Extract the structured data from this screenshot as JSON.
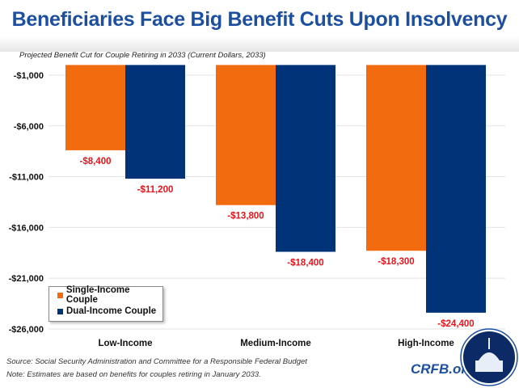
{
  "title": "Beneficiaries Face Big Benefit Cuts Upon Insolvency",
  "subtitle": "Projected Benefit Cut for Couple Retiring in 2033 (Current Dollars, 2033)",
  "chart_data": {
    "type": "bar",
    "categories": [
      "Low-Income",
      "Medium-Income",
      "High-Income"
    ],
    "series": [
      {
        "name": "Single-Income Couple",
        "color": "#f26b0f",
        "values": [
          -8400,
          -13800,
          -18300
        ],
        "labels": [
          "-$8,400",
          "-$13,800",
          "-$18,300"
        ]
      },
      {
        "name": "Dual-Income Couple",
        "color": "#003378",
        "values": [
          -11200,
          -18400,
          -24400
        ],
        "labels": [
          "-$11,200",
          "-$18,400",
          "-$24,400"
        ]
      }
    ],
    "yticks": [
      -1000,
      -6000,
      -11000,
      -16000,
      -21000,
      -26000
    ],
    "ytick_labels": [
      "-$1,000",
      "-$6,000",
      "-$11,000",
      "-$16,000",
      "-$21,000",
      "-$26,000"
    ],
    "ylim": [
      -26000,
      0
    ],
    "grid": true,
    "legend_position": "bottom-left",
    "data_label_color": "#e8141b"
  },
  "footer": {
    "source": "Source: Social Security Administration and Committee for a Responsible Federal Budget",
    "note": "Note: Estimates are based on benefits for couples retiring in January 2033.",
    "logo_text": "CRFB.org"
  }
}
